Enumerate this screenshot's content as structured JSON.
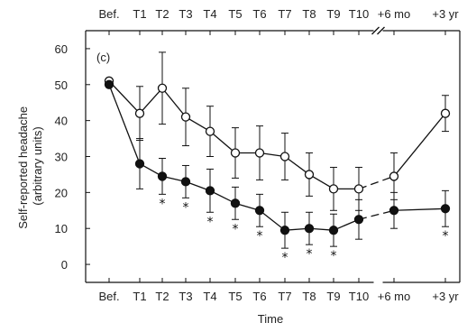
{
  "chart_data": {
    "type": "line",
    "panel_label": "(c)",
    "xlabel": "Time",
    "ylabel_lines": [
      "Self-reported headache",
      "(arbitrary units)"
    ],
    "categories": [
      "Bef.",
      "T1",
      "T2",
      "T3",
      "T4",
      "T5",
      "T6",
      "T7",
      "T8",
      "T9",
      "T10",
      "+6 mo",
      "+3 yr"
    ],
    "top_tick_labels": [
      "Bef.",
      "T1",
      "T2",
      "T3",
      "T4",
      "T5",
      "T6",
      "T7",
      "T8",
      "T9",
      "T10",
      "+6 mo",
      "+3 yr"
    ],
    "axis_break_after": "T10",
    "ylim": [
      -5,
      65
    ],
    "yticks": [
      0,
      10,
      20,
      30,
      40,
      50,
      60
    ],
    "grid": false,
    "legend": "none",
    "series": [
      {
        "marker": "open-circle",
        "values": [
          51,
          42,
          49,
          41,
          37,
          31,
          31,
          30,
          25,
          21,
          21,
          24.5,
          42
        ],
        "error": [
          0,
          7.5,
          10,
          8,
          7,
          7,
          7.5,
          6.5,
          6,
          6,
          6,
          6.5,
          5
        ]
      },
      {
        "marker": "filled-circle",
        "values": [
          50,
          28,
          24.5,
          23,
          20.5,
          17,
          15,
          9.5,
          10,
          9.5,
          12.5,
          15,
          15.5
        ],
        "error": [
          0,
          7,
          5,
          4.5,
          6,
          4.5,
          4.5,
          5,
          4.5,
          4.5,
          5.5,
          5,
          5
        ]
      }
    ],
    "significance_marks": [
      "T2",
      "T3",
      "T4",
      "T5",
      "T6",
      "T7",
      "T8",
      "T9",
      "+3 yr"
    ],
    "significance_symbol": "*"
  }
}
